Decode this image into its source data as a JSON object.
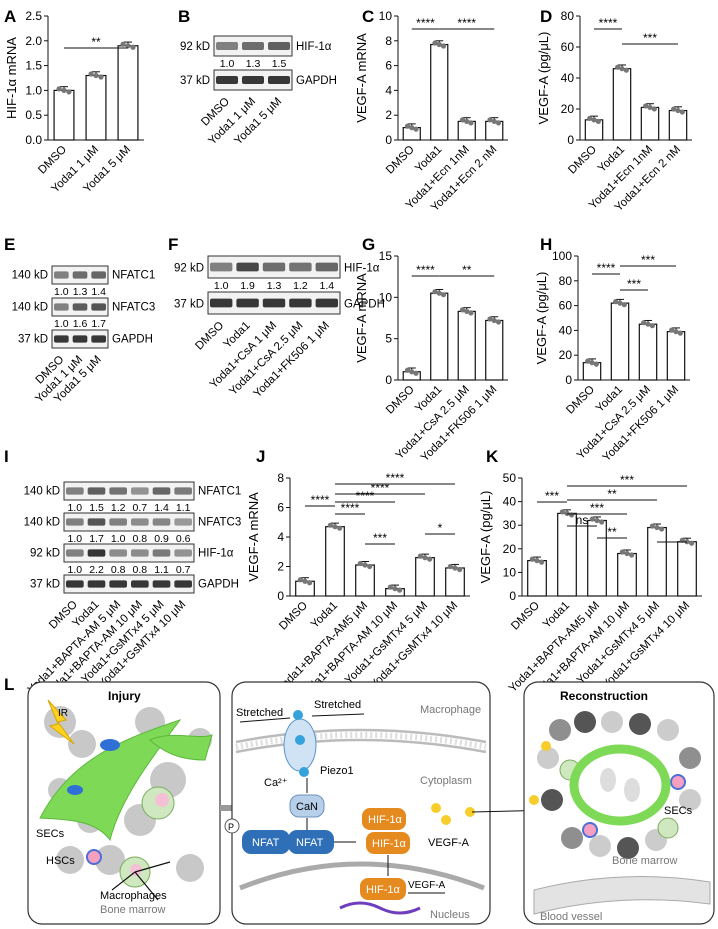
{
  "labels": {
    "A": "A",
    "B": "B",
    "C": "C",
    "D": "D",
    "E": "E",
    "F": "F",
    "G": "G",
    "H": "H",
    "I": "I",
    "J": "J",
    "K": "K",
    "L": "L"
  },
  "chart_data": [
    {
      "panel": "A",
      "type": "bar",
      "categories": [
        "DMSO",
        "Yoda1 1 μM",
        "Yoda1 5 μM"
      ],
      "values": [
        1.0,
        1.3,
        1.9
      ],
      "ylabel": "HIF-1α mRNA",
      "ylim": [
        0,
        2.5
      ],
      "yticks": [
        "0.0",
        "0.5",
        "1.0",
        "1.5",
        "2.0",
        "2.5"
      ],
      "sig": [
        "**"
      ]
    },
    {
      "panel": "C",
      "type": "bar",
      "categories": [
        "DMSO",
        "Yoda1",
        "Yoda1+Ecn 1nM",
        "Yoda1+Ecn 2 nM"
      ],
      "values": [
        1.0,
        7.7,
        1.5,
        1.5
      ],
      "ylabel": "VEGF-A mRNA",
      "ylim": [
        0,
        10
      ],
      "yticks": [
        "0",
        "2",
        "4",
        "6",
        "8",
        "10"
      ],
      "sig": [
        "****",
        "****"
      ]
    },
    {
      "panel": "D",
      "type": "bar",
      "categories": [
        "DMSO",
        "Yoda1",
        "Yoda1+Ecn 1nM",
        "Yoda1+Ecn 2 nM"
      ],
      "values": [
        13,
        46,
        21,
        19
      ],
      "ylabel": "VEGF-A (pg/μL)",
      "ylim": [
        0,
        80
      ],
      "yticks": [
        "0",
        "20",
        "40",
        "60",
        "80"
      ],
      "sig": [
        "****",
        "***"
      ]
    },
    {
      "panel": "G",
      "type": "bar",
      "categories": [
        "DMSO",
        "Yoda1",
        "Yoda1+CsA 2.5 μM",
        "Yoda1+FK506 1 μM"
      ],
      "values": [
        1.0,
        10.5,
        8.3,
        7.2
      ],
      "ylabel": "VEGF-A mRNA",
      "ylim": [
        0,
        15
      ],
      "yticks": [
        "0",
        "5",
        "10",
        "15"
      ],
      "sig": [
        "****",
        "**"
      ]
    },
    {
      "panel": "H",
      "type": "bar",
      "categories": [
        "DMSO",
        "Yoda1",
        "Yoda1+CsA 2.5 μM",
        "Yoda1+FK506 1 μM"
      ],
      "values": [
        14,
        62,
        45,
        39
      ],
      "ylabel": "VEGF-A (pg/μL)",
      "ylim": [
        0,
        100
      ],
      "yticks": [
        "0",
        "20",
        "40",
        "60",
        "80",
        "100"
      ],
      "sig": [
        "****",
        "***",
        "***"
      ]
    },
    {
      "panel": "J",
      "type": "bar",
      "categories": [
        "DMSO",
        "Yoda1",
        "Yoda1+BAPTA-AM5 μM",
        "Yoda1+BAPTA-AM 10 μM",
        "Yoda1+GsMTx4 5 μM",
        "Yoda1+GsMTx4 10 μM"
      ],
      "values": [
        1.0,
        4.7,
        2.1,
        0.5,
        2.6,
        1.9
      ],
      "ylabel": "VEGF-A mRNA",
      "ylim": [
        0,
        8
      ],
      "yticks": [
        "0",
        "2",
        "4",
        "6",
        "8"
      ],
      "sig": [
        "****",
        "****",
        "****",
        "****",
        "****",
        "***",
        "*"
      ]
    },
    {
      "panel": "K",
      "type": "bar",
      "categories": [
        "DMSO",
        "Yoda1",
        "Yoda1+BAPTA-AM5 μM",
        "Yoda1+BAPTA-AM 10 μM",
        "Yoda1+GsMTx4 5 μM",
        "Yoda1+GsMTx4 10 μM"
      ],
      "values": [
        15,
        35,
        32,
        18,
        29,
        23
      ],
      "ylabel": "VEGF-A (pg/μL)",
      "ylim": [
        0,
        50
      ],
      "yticks": [
        "0",
        "10",
        "20",
        "30",
        "40",
        "50"
      ],
      "sig": [
        "***",
        "ns",
        "***",
        "**",
        "***",
        "**"
      ]
    }
  ],
  "blots": {
    "B": {
      "bands": [
        {
          "kd": "92 kD",
          "name": "HIF-1α",
          "q": [
            "1.0",
            "1.3",
            "1.5"
          ]
        },
        {
          "kd": "37 kD",
          "name": "GAPDH",
          "q": []
        }
      ],
      "lanes": [
        "DMSO",
        "Yoda1 1 μM",
        "Yoda1 5 μM"
      ]
    },
    "E": {
      "bands": [
        {
          "kd": "140 kD",
          "name": "NFATC1",
          "q": [
            "1.0",
            "1.3",
            "1.4"
          ]
        },
        {
          "kd": "140 kD",
          "name": "NFATC3",
          "q": [
            "1.0",
            "1.6",
            "1.7"
          ]
        },
        {
          "kd": "37 kD",
          "name": "GAPDH",
          "q": []
        }
      ],
      "lanes": [
        "DMSO",
        "Yoda1 1 μM",
        "Yoda1 5 μM"
      ]
    },
    "F": {
      "bands": [
        {
          "kd": "92 kD",
          "name": "HIF-1α",
          "q": [
            "1.0",
            "1.9",
            "1.3",
            "1.2",
            "1.4"
          ]
        },
        {
          "kd": "37 kD",
          "name": "GAPDH",
          "q": []
        }
      ],
      "lanes": [
        "DMSO",
        "Yoda1",
        "Yoda1+CsA 1 μM",
        "Yoda1+CsA 2.5 μM",
        "Yoda1+FK506 1 μM"
      ]
    },
    "I": {
      "bands": [
        {
          "kd": "140 kD",
          "name": "NFATC1",
          "q": [
            "1.0",
            "1.5",
            "1.2",
            "0.7",
            "1.4",
            "1.1"
          ]
        },
        {
          "kd": "140 kD",
          "name": "NFATC3",
          "q": [
            "1.0",
            "1.7",
            "1.0",
            "0.8",
            "0.9",
            "0.6"
          ]
        },
        {
          "kd": "92 kD",
          "name": "HIF-1α",
          "q": [
            "1.0",
            "2.2",
            "0.8",
            "0.8",
            "1.1",
            "0.7"
          ]
        },
        {
          "kd": "37 kD",
          "name": "GAPDH",
          "q": []
        }
      ],
      "lanes": [
        "DMSO",
        "Yoda1",
        "Yoda1+BAPTA-AM 5 μM",
        "Yoda1+BAPTA-AM 10 μM",
        "Yoda1+GsMTx4 5 μM",
        "Yoda1+GsMTx4 10 μM"
      ]
    }
  },
  "diagram": {
    "injury": "Injury",
    "ir": "IR",
    "secs": "SECs",
    "hscs": "HSCs",
    "macrophages": "Macrophages",
    "bone_marrow": "Bone marrow",
    "stretched": "Stretched",
    "macrophage": "Macrophage",
    "ca": "Ca²⁺",
    "piezo1": "Piezo1",
    "cytoplasm": "Cytoplasm",
    "can": "CaN",
    "p": "P",
    "nfat": "NFAT",
    "hif": "HIF-1α",
    "vegf": "VEGF-A",
    "nucleus": "Nucleus",
    "reconstruction": "Reconstruction",
    "blood_vessel": "Blood vessel"
  }
}
